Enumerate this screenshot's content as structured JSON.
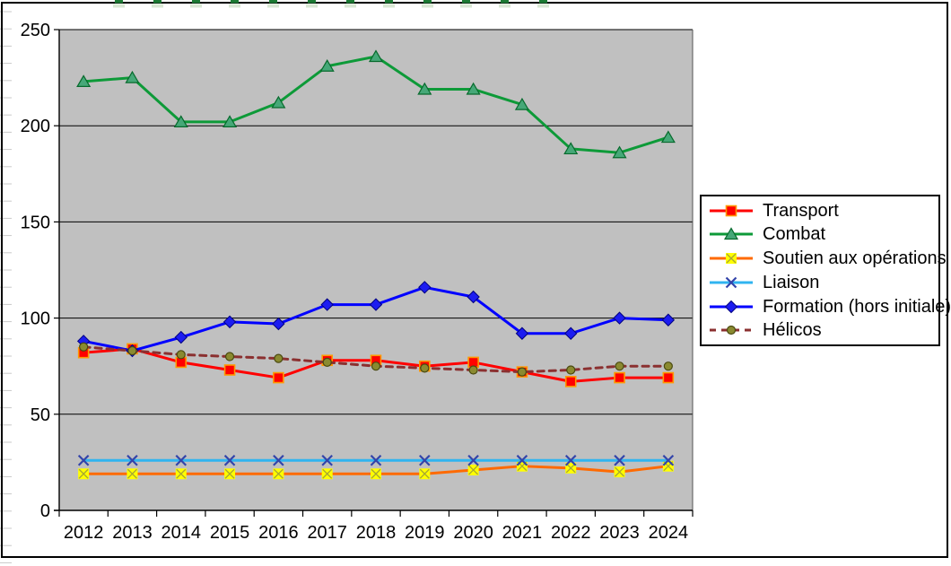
{
  "chart_data": {
    "type": "line",
    "title": "",
    "categories": [
      "2012",
      "2013",
      "2014",
      "2015",
      "2016",
      "2017",
      "2018",
      "2019",
      "2020",
      "2021",
      "2022",
      "2023",
      "2024"
    ],
    "series": [
      {
        "name": "Transport",
        "color": "#ff0000",
        "marker": "square",
        "marker_fill": "#ff0000",
        "marker_border": "#ff9900",
        "dashed": false,
        "values": [
          82,
          84,
          77,
          73,
          69,
          78,
          78,
          75,
          77,
          72,
          67,
          69,
          69
        ]
      },
      {
        "name": "Combat",
        "color": "#0d9a38",
        "marker": "triangle",
        "marker_fill": "#46a878",
        "marker_border": "#066a2c",
        "dashed": false,
        "values": [
          223,
          225,
          202,
          202,
          212,
          231,
          236,
          219,
          219,
          211,
          188,
          186,
          194
        ]
      },
      {
        "name": "Soutien aux opérations",
        "color": "#ff6a00",
        "marker": "square-x",
        "marker_fill": "#ffff00",
        "marker_border": "#a8a832",
        "dashed": false,
        "values": [
          19,
          19,
          19,
          19,
          19,
          19,
          19,
          19,
          21,
          23,
          22,
          20,
          23
        ]
      },
      {
        "name": "Liaison",
        "color": "#30b4f0",
        "marker": "x",
        "marker_fill": "#3344aa",
        "marker_border": "#3344aa",
        "dashed": false,
        "values": [
          26,
          26,
          26,
          26,
          26,
          26,
          26,
          26,
          26,
          26,
          26,
          26,
          26
        ]
      },
      {
        "name": "Formation (hors initiale)",
        "color": "#0000ff",
        "marker": "diamond",
        "marker_fill": "#1c1cf0",
        "marker_border": "#000080",
        "dashed": false,
        "values": [
          88,
          83,
          90,
          98,
          97,
          107,
          107,
          116,
          111,
          92,
          92,
          100,
          99
        ]
      },
      {
        "name": "Hélicos",
        "color": "#8b3030",
        "marker": "circle",
        "marker_fill": "#8a8a30",
        "marker_border": "#4a4a10",
        "dashed": true,
        "values": [
          85,
          83,
          81,
          80,
          79,
          77,
          75,
          74,
          73,
          72,
          73,
          75,
          75
        ]
      }
    ],
    "xlabel": "",
    "ylabel": "",
    "ylim": [
      0,
      250
    ],
    "yticks": [
      0,
      50,
      100,
      150,
      200,
      250
    ],
    "grid": true,
    "legend_position": "right",
    "plot_bg": "#c0c0c0"
  }
}
